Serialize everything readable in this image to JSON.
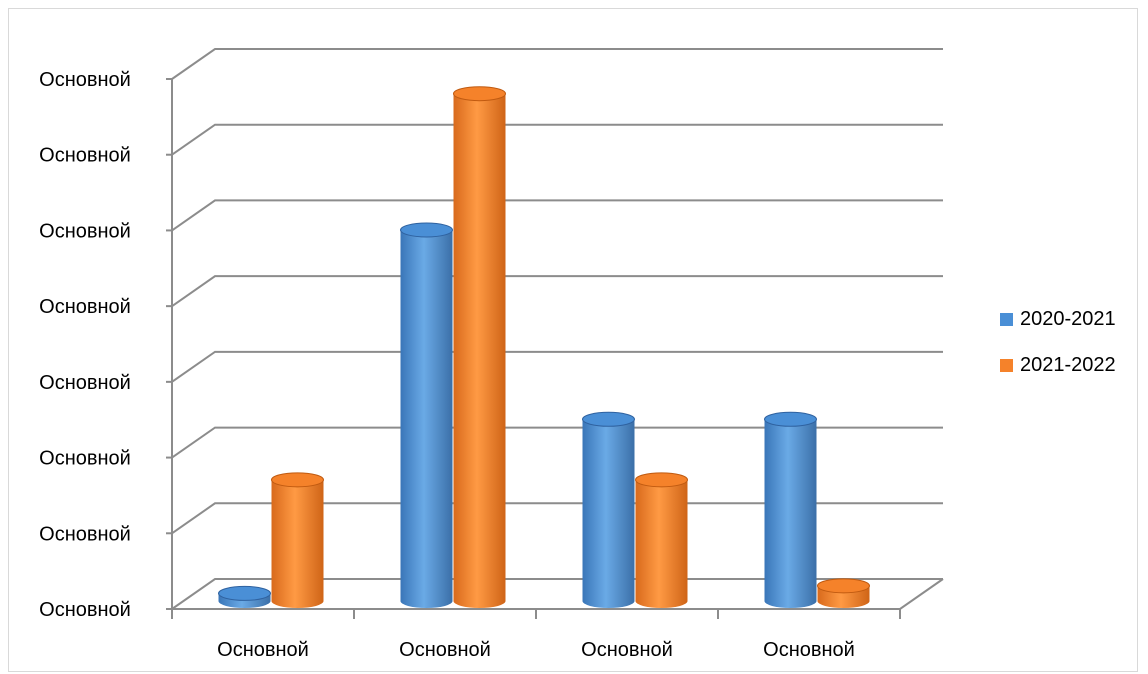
{
  "chart_data": {
    "type": "bar",
    "title": "",
    "xlabel": "",
    "ylabel": "",
    "categories": [
      "Основной",
      "Основной",
      "Основной",
      "Основной"
    ],
    "y_tick_labels": [
      "Основной",
      "Основной",
      "Основной",
      "Основной",
      "Основной",
      "Основной",
      "Основной",
      "Основной"
    ],
    "ylim": [
      0,
      7
    ],
    "grid": true,
    "legend_position": "right",
    "series": [
      {
        "name": "2020-2021",
        "color": "#4a8fd6",
        "values": [
          0.1,
          4.9,
          2.4,
          2.4
        ]
      },
      {
        "name": "2021-2022",
        "color": "#f5822a",
        "values": [
          1.6,
          6.7,
          1.6,
          0.2
        ]
      }
    ]
  }
}
